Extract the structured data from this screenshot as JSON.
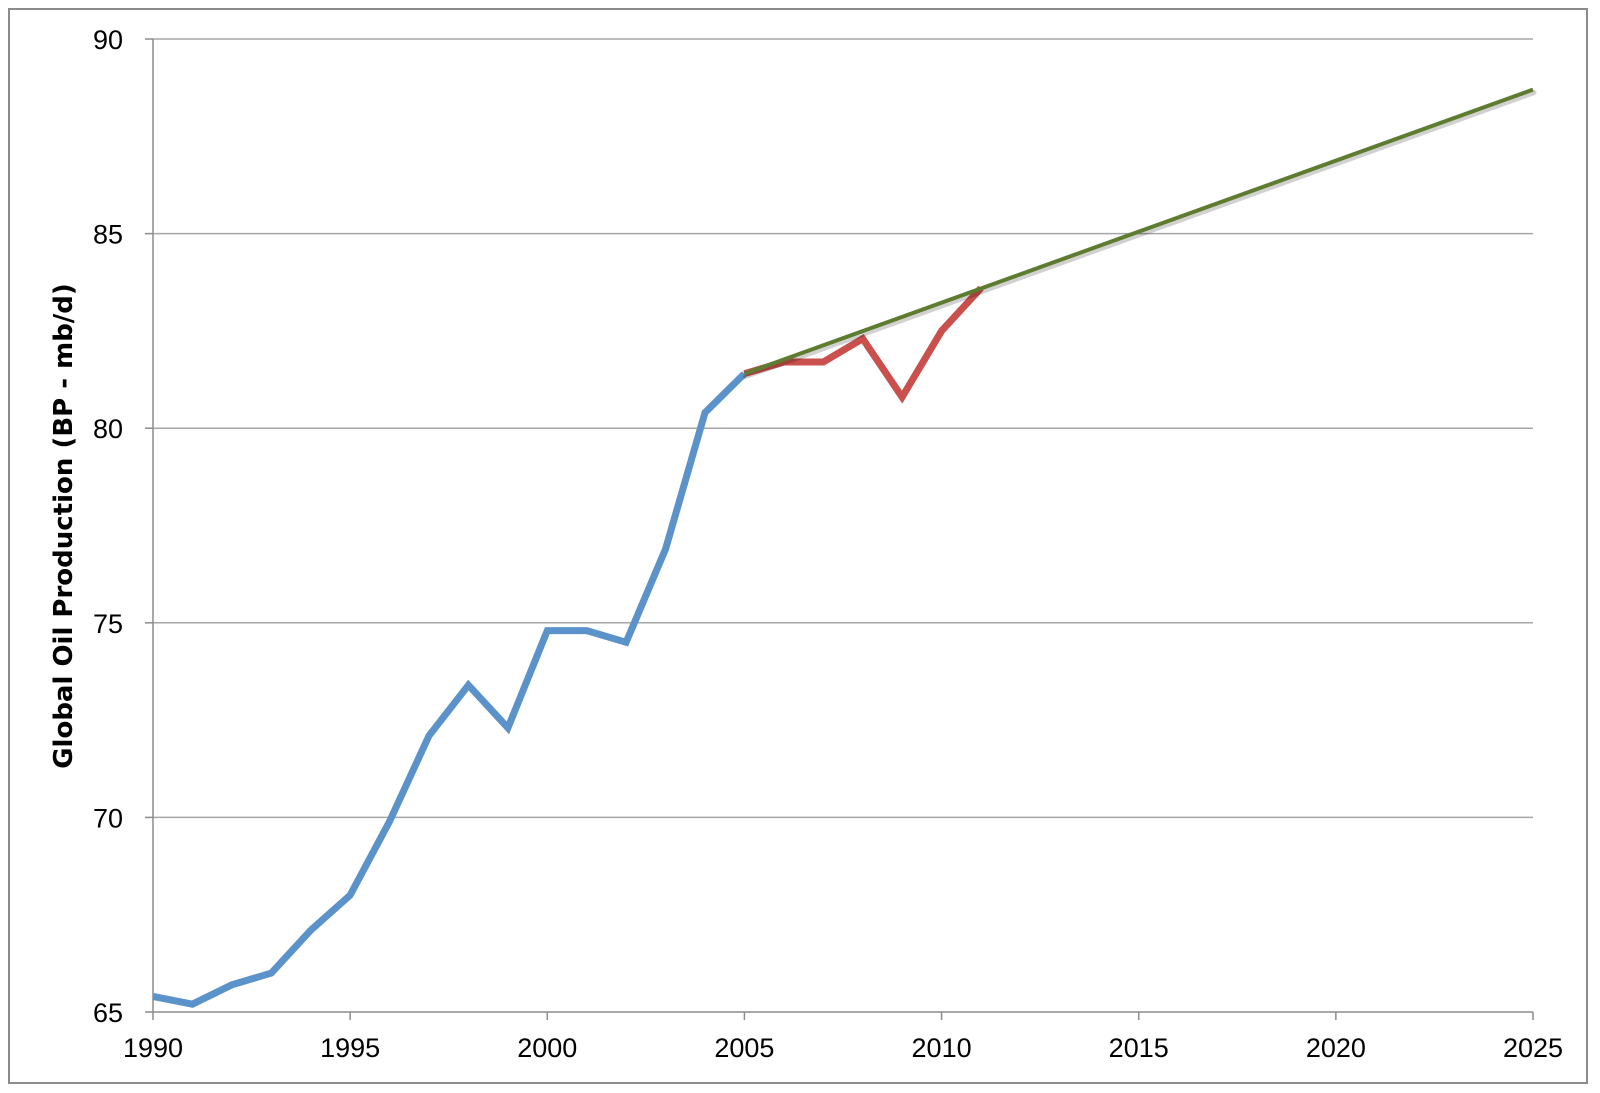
{
  "chart_data": {
    "type": "line",
    "title": "",
    "xlabel": "",
    "ylabel": "Global Oil Production (BP - mb/d)",
    "xlim": [
      1990,
      2025
    ],
    "ylim": [
      65,
      90
    ],
    "x_ticks": [
      "1990",
      "1995",
      "2000",
      "2005",
      "2010",
      "2015",
      "2020",
      "2025"
    ],
    "y_ticks": [
      "65",
      "70",
      "75",
      "80",
      "85",
      "90"
    ],
    "grid": "horizontal",
    "legend": "none",
    "series": [
      {
        "color": "#5b92c9",
        "x": [
          1990,
          1991,
          1992,
          1993,
          1994,
          1995,
          1996,
          1997,
          1998,
          1999,
          2000,
          2001,
          2002,
          2003,
          2004,
          2005
        ],
        "y": [
          65.4,
          65.2,
          65.7,
          66.0,
          67.1,
          68.0,
          69.9,
          72.1,
          73.4,
          72.3,
          74.8,
          74.8,
          74.5,
          76.9,
          80.4,
          81.4
        ]
      },
      {
        "color": "#c9504c",
        "x": [
          2005,
          2006,
          2007,
          2008,
          2009,
          2010,
          2011
        ],
        "y": [
          81.4,
          81.7,
          81.7,
          82.3,
          80.8,
          82.5,
          83.6
        ]
      },
      {
        "color": "#5e7c2f",
        "x": [
          2005,
          2025
        ],
        "y": [
          81.4,
          88.7
        ]
      }
    ]
  }
}
